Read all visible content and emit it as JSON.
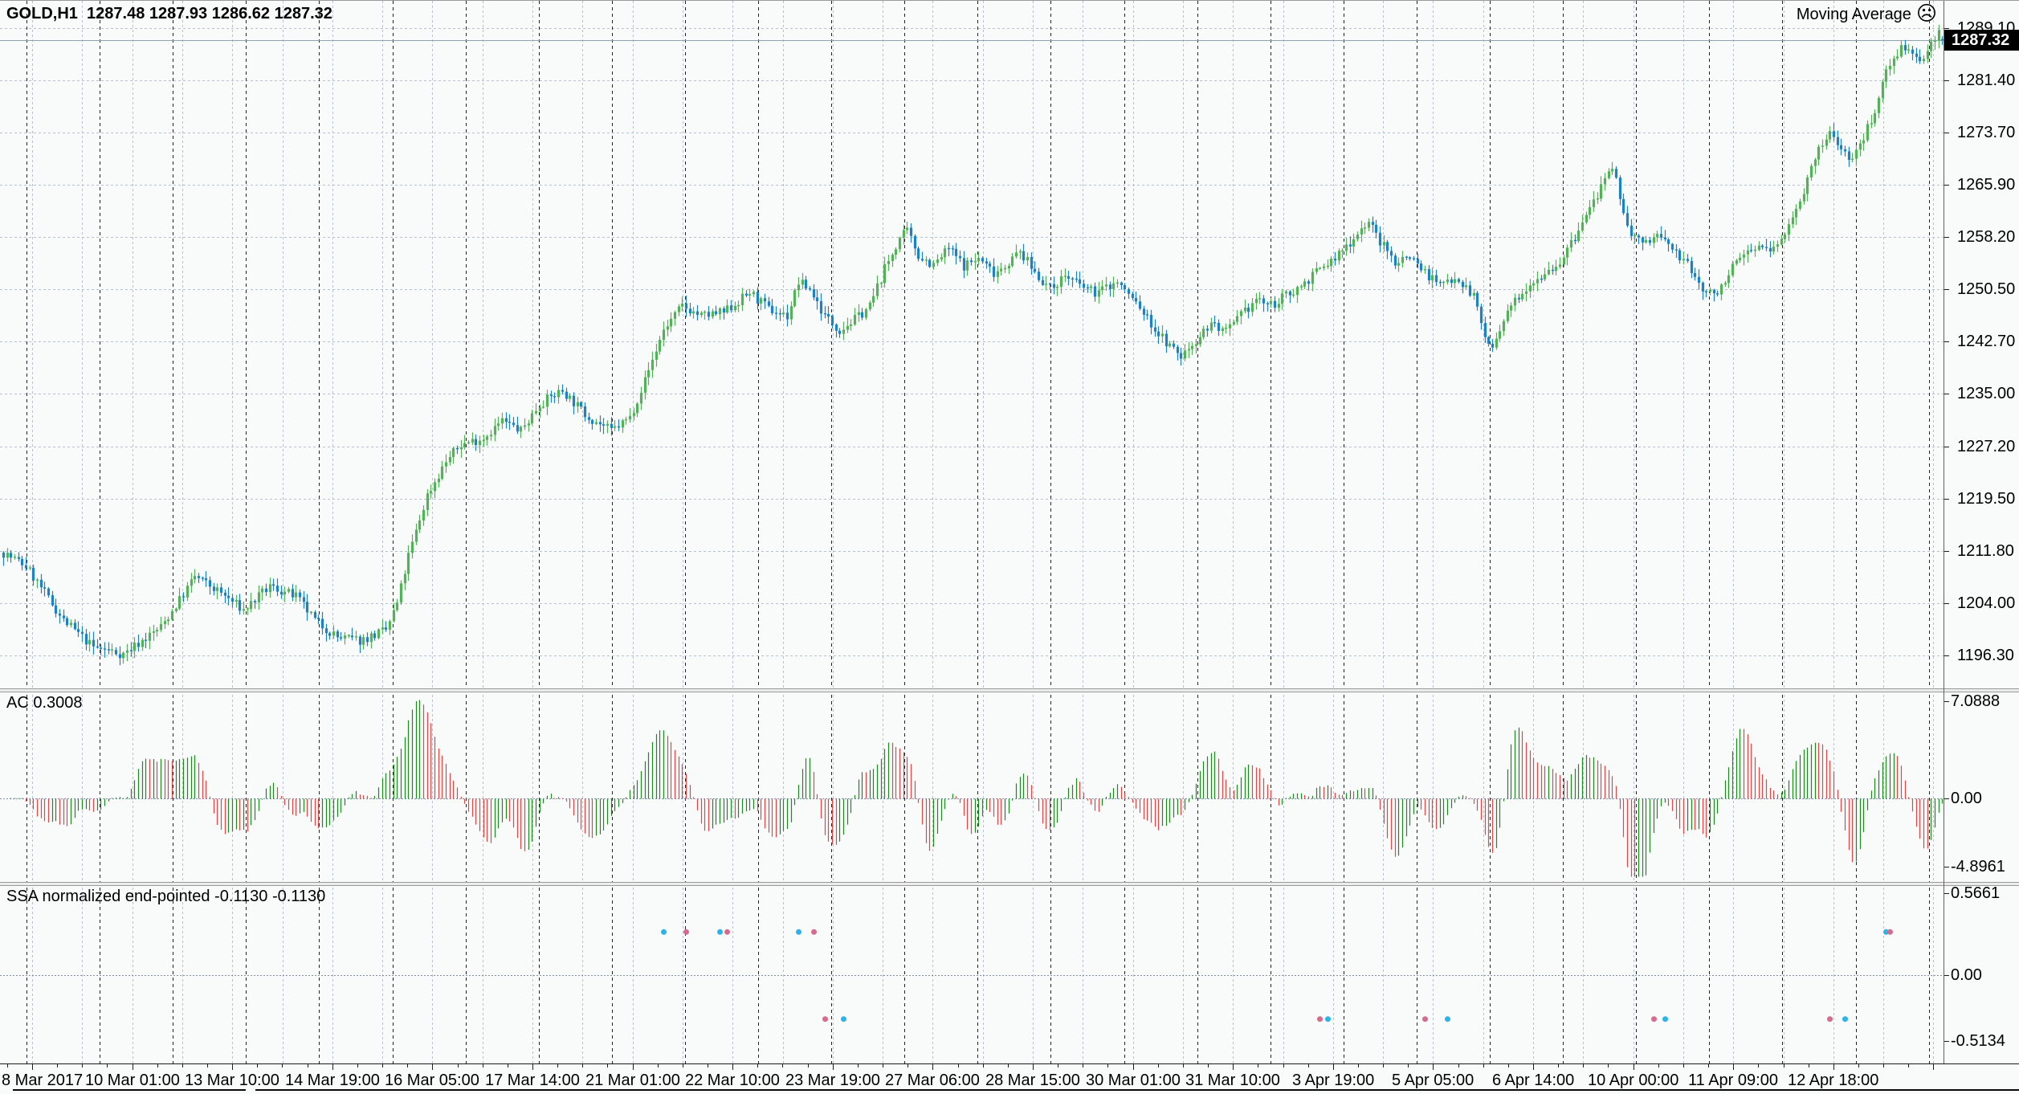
{
  "header": {
    "symbol_timeframe": "GOLD,H1",
    "ohlc_text": "1287.48 1287.93 1286.62 1287.32"
  },
  "indicator_badge": {
    "label": "Moving Average",
    "icon": "sad-face",
    "glyph": "☹"
  },
  "panels": {
    "price": {
      "axis_labels": [
        "1289.10",
        "1281.40",
        "1273.70",
        "1265.90",
        "1258.20",
        "1250.50",
        "1242.70",
        "1235.00",
        "1227.20",
        "1219.50",
        "1211.80",
        "1204.00",
        "1196.30"
      ],
      "current_price": "1287.32"
    },
    "ac": {
      "title": "AC 0.3008",
      "axis_labels": [
        "7.0888",
        "0.00",
        "-4.8961"
      ]
    },
    "ssa": {
      "title": "SSA normalized end-pointed -0.1130 -0.1130",
      "axis_labels": [
        "0.5661",
        "0.00",
        "-0.5134"
      ]
    }
  },
  "time_axis": {
    "labels": [
      "8 Mar 2017",
      "10 Mar 01:00",
      "13 Mar 10:00",
      "14 Mar 19:00",
      "16 Mar 05:00",
      "17 Mar 14:00",
      "21 Mar 01:00",
      "22 Mar 10:00",
      "23 Mar 19:00",
      "27 Mar 06:00",
      "28 Mar 15:00",
      "30 Mar 01:00",
      "31 Mar 10:00",
      "3 Apr 19:00",
      "5 Apr 05:00",
      "6 Apr 14:00",
      "10 Apr 00:00",
      "11 Apr 09:00",
      "12 Apr 18:00"
    ]
  },
  "colors": {
    "bg": "#f9fafa",
    "candle_up": "#53b257",
    "candle_down": "#1d82c4",
    "ac_up": "#1c8a1c",
    "ac_down": "#e04848",
    "dot_blue": "#2bb3ea",
    "dot_pink": "#d66b8e",
    "grid": "#b7c0cc",
    "day_separator": "#222222",
    "zero_line": "#7d91ad",
    "bid_line": "#8fa2b5",
    "tag_bg": "#000000",
    "tag_fg": "#ffffff"
  },
  "chart_data": {
    "type": "candlestick",
    "symbol": "GOLD",
    "timeframe": "H1",
    "title": "GOLD,H1",
    "current_ohlc": {
      "open": 1287.48,
      "high": 1287.93,
      "low": 1286.62,
      "close": 1287.32
    },
    "price_axis": {
      "min": 1191.5,
      "max": 1289.7,
      "gridline_values": [
        1289.1,
        1281.4,
        1273.7,
        1265.9,
        1258.2,
        1250.5,
        1242.7,
        1235.0,
        1227.2,
        1219.5,
        1211.8,
        1204.0,
        1196.3
      ]
    },
    "time_labels": [
      "8 Mar 2017",
      "10 Mar 01:00",
      "13 Mar 10:00",
      "14 Mar 19:00",
      "16 Mar 05:00",
      "17 Mar 14:00",
      "21 Mar 01:00",
      "22 Mar 10:00",
      "23 Mar 19:00",
      "27 Mar 06:00",
      "28 Mar 15:00",
      "30 Mar 01:00",
      "31 Mar 10:00",
      "3 Apr 19:00",
      "5 Apr 05:00",
      "6 Apr 14:00",
      "10 Apr 00:00",
      "11 Apr 09:00",
      "12 Apr 18:00"
    ],
    "visible_bars": 518,
    "price_path_anchors": [
      [
        0,
        1211.5
      ],
      [
        6,
        1209.5
      ],
      [
        16,
        1201.5
      ],
      [
        24,
        1197.5
      ],
      [
        32,
        1196.5
      ],
      [
        42,
        1200.5
      ],
      [
        47,
        1204.5
      ],
      [
        51,
        1208
      ],
      [
        58,
        1205.5
      ],
      [
        64,
        1203
      ],
      [
        71,
        1206.5
      ],
      [
        78,
        1205
      ],
      [
        83,
        1201.5
      ],
      [
        89,
        1199
      ],
      [
        95,
        1198.5
      ],
      [
        102,
        1200
      ],
      [
        105,
        1204
      ],
      [
        108,
        1211
      ],
      [
        113,
        1220
      ],
      [
        118,
        1225
      ],
      [
        122,
        1227.5
      ],
      [
        128,
        1228.5
      ],
      [
        133,
        1231
      ],
      [
        138,
        1229.5
      ],
      [
        143,
        1233.5
      ],
      [
        149,
        1235.5
      ],
      [
        155,
        1232
      ],
      [
        162,
        1229.5
      ],
      [
        167,
        1231.5
      ],
      [
        171,
        1237
      ],
      [
        176,
        1244.5
      ],
      [
        181,
        1248
      ],
      [
        186,
        1246.5
      ],
      [
        192,
        1247
      ],
      [
        199,
        1250
      ],
      [
        204,
        1247.5
      ],
      [
        209,
        1246.5
      ],
      [
        212,
        1251.5
      ],
      [
        215,
        1250.5
      ],
      [
        219,
        1246.5
      ],
      [
        223,
        1244.5
      ],
      [
        227,
        1246
      ],
      [
        231,
        1248
      ],
      [
        235,
        1253.5
      ],
      [
        239,
        1258
      ],
      [
        241,
        1259
      ],
      [
        244,
        1255.5
      ],
      [
        248,
        1254
      ],
      [
        252,
        1256.5
      ],
      [
        256,
        1254
      ],
      [
        260,
        1255
      ],
      [
        264,
        1253
      ],
      [
        267,
        1254
      ],
      [
        271,
        1256
      ],
      [
        275,
        1253
      ],
      [
        279,
        1250.5
      ],
      [
        283,
        1252.5
      ],
      [
        287,
        1251
      ],
      [
        291,
        1250
      ],
      [
        297,
        1251.5
      ],
      [
        302,
        1248.5
      ],
      [
        307,
        1244.5
      ],
      [
        311,
        1242
      ],
      [
        314,
        1240.5
      ],
      [
        318,
        1243
      ],
      [
        322,
        1245.5
      ],
      [
        326,
        1244
      ],
      [
        330,
        1246.5
      ],
      [
        334,
        1249
      ],
      [
        338,
        1248
      ],
      [
        342,
        1249.5
      ],
      [
        346,
        1251
      ],
      [
        350,
        1253
      ],
      [
        355,
        1255
      ],
      [
        359,
        1257.5
      ],
      [
        362,
        1259.5
      ],
      [
        364,
        1260.5
      ],
      [
        367,
        1257.5
      ],
      [
        371,
        1254.5
      ],
      [
        375,
        1255.5
      ],
      [
        379,
        1253
      ],
      [
        383,
        1251
      ],
      [
        387,
        1252.5
      ],
      [
        392,
        1249.5
      ],
      [
        395,
        1243.5
      ],
      [
        397,
        1241.5
      ],
      [
        400,
        1245.5
      ],
      [
        403,
        1249
      ],
      [
        407,
        1251.5
      ],
      [
        411,
        1253
      ],
      [
        415,
        1254.5
      ],
      [
        419,
        1258
      ],
      [
        423,
        1262.5
      ],
      [
        426,
        1265.5
      ],
      [
        429,
        1268
      ],
      [
        431,
        1264.5
      ],
      [
        433,
        1259.5
      ],
      [
        437,
        1257
      ],
      [
        441,
        1258.5
      ],
      [
        445,
        1256.5
      ],
      [
        449,
        1254
      ],
      [
        453,
        1250.5
      ],
      [
        456,
        1249.5
      ],
      [
        459,
        1252
      ],
      [
        463,
        1255
      ],
      [
        467,
        1257
      ],
      [
        471,
        1256
      ],
      [
        475,
        1258.5
      ],
      [
        477,
        1261.5
      ],
      [
        481,
        1266.5
      ],
      [
        484,
        1271
      ],
      [
        487,
        1273.5
      ],
      [
        490,
        1271.5
      ],
      [
        493,
        1269.5
      ],
      [
        496,
        1273
      ],
      [
        499,
        1277
      ],
      [
        502,
        1283
      ],
      [
        506,
        1286.5
      ],
      [
        509,
        1285
      ],
      [
        511,
        1283.5
      ],
      [
        513,
        1286
      ],
      [
        516,
        1288.6
      ],
      [
        517,
        1287.3
      ]
    ],
    "indicators": [
      {
        "name": "Moving Average",
        "status": "not-loaded"
      },
      {
        "name": "AC",
        "style": "histogram",
        "last_value": 0.3008,
        "axis": {
          "max": 7.0888,
          "mid": 0.0,
          "min": -4.8961
        }
      },
      {
        "name": "SSA normalized end-pointed",
        "style": "dots",
        "last_values": [
          -0.113,
          -0.113
        ],
        "axis": {
          "max": 0.5661,
          "mid": 0.0,
          "min": -0.5134
        },
        "dots": [
          {
            "bar": 176,
            "value": 0.29,
            "series": "blue"
          },
          {
            "bar": 182,
            "value": 0.29,
            "series": "pink"
          },
          {
            "bar": 191,
            "value": 0.29,
            "series": "blue"
          },
          {
            "bar": 193,
            "value": 0.29,
            "series": "pink"
          },
          {
            "bar": 212,
            "value": 0.29,
            "series": "blue"
          },
          {
            "bar": 216,
            "value": 0.29,
            "series": "pink"
          },
          {
            "bar": 219,
            "value": -0.29,
            "series": "pink"
          },
          {
            "bar": 224,
            "value": -0.29,
            "series": "blue"
          },
          {
            "bar": 351,
            "value": -0.29,
            "series": "pink"
          },
          {
            "bar": 353,
            "value": -0.29,
            "series": "blue"
          },
          {
            "bar": 379,
            "value": -0.29,
            "series": "pink"
          },
          {
            "bar": 385,
            "value": -0.29,
            "series": "blue"
          },
          {
            "bar": 440,
            "value": -0.29,
            "series": "pink"
          },
          {
            "bar": 443,
            "value": -0.29,
            "series": "blue"
          },
          {
            "bar": 487,
            "value": -0.29,
            "series": "pink"
          },
          {
            "bar": 491,
            "value": -0.29,
            "series": "blue"
          },
          {
            "bar": 502,
            "value": 0.29,
            "series": "blue"
          },
          {
            "bar": 503,
            "value": 0.29,
            "series": "pink"
          }
        ]
      }
    ]
  }
}
